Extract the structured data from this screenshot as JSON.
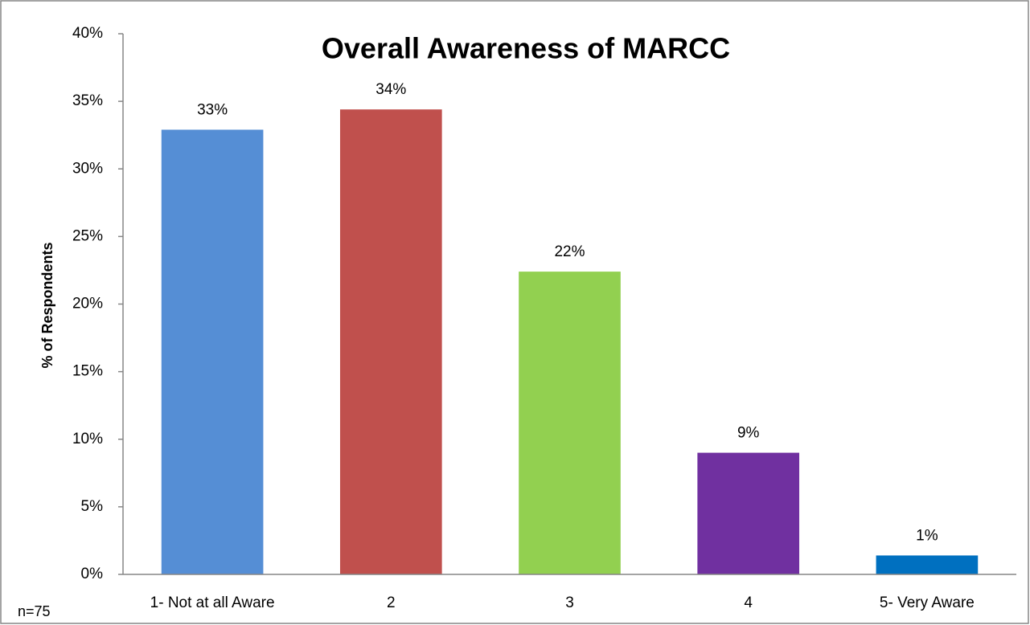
{
  "chart_data": {
    "type": "bar",
    "title": "Overall Awareness of MARCC",
    "y_label": "% of Respondents",
    "note": "n=75",
    "categories": [
      "1- Not at all Aware",
      "2",
      "3",
      "4",
      "5- Very Aware"
    ],
    "values": [
      32.9,
      34.4,
      22.4,
      9.0,
      1.4
    ],
    "value_labels": [
      "33%",
      "34%",
      "22%",
      "9%",
      "1%"
    ],
    "colors": [
      "#558ed5",
      "#c0504d",
      "#92d050",
      "#7030a0",
      "#0070c0"
    ],
    "ylim": [
      0,
      40
    ],
    "yticks": [
      {
        "value": 0,
        "label": "0%"
      },
      {
        "value": 5,
        "label": "5%"
      },
      {
        "value": 10,
        "label": "10%"
      },
      {
        "value": 15,
        "label": "15%"
      },
      {
        "value": 20,
        "label": "20%"
      },
      {
        "value": 25,
        "label": "25%"
      },
      {
        "value": 30,
        "label": "30%"
      },
      {
        "value": 35,
        "label": "35%"
      },
      {
        "value": 40,
        "label": "40%"
      }
    ],
    "grid": false
  }
}
